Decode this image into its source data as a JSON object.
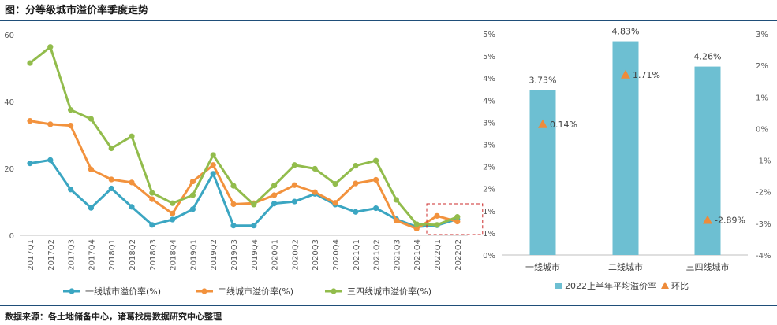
{
  "page": {
    "title": "图：分等级城市溢价率季度走势",
    "source": "数据来源：各土地储备中心，诸葛找房数据研究中心整理"
  },
  "colors": {
    "tier1": "#3ba6c2",
    "tier2": "#f2923d",
    "tier3": "#92bc4c",
    "bar": "#6dbfd2",
    "triangle": "#ee8b3a",
    "highlight_box": "#cc2b2b"
  },
  "chart_data": [
    {
      "type": "line",
      "x_categories": [
        "2017Q1",
        "2017Q2",
        "2017Q3",
        "2017Q4",
        "2018Q1",
        "2018Q2",
        "2018Q3",
        "2018Q4",
        "2019Q1",
        "2019Q2",
        "2019Q3",
        "2019Q4",
        "2020Q1",
        "2020Q2",
        "2020Q3",
        "2020Q4",
        "2021Q1",
        "2021Q2",
        "2021Q3",
        "2021Q4",
        "2022Q1",
        "2022Q2"
      ],
      "y_ticks": [
        "0",
        "20",
        "40",
        "60"
      ],
      "ylim": [
        0,
        60
      ],
      "grid": false,
      "legend_position": "bottom",
      "highlight": {
        "from": "2022Q1",
        "to": "2022Q2"
      },
      "series": [
        {
          "name": "一线城市溢价率(%)",
          "color_key": "tier1",
          "values": [
            21.5,
            22.5,
            13.7,
            8.2,
            14.0,
            8.5,
            3.1,
            4.7,
            7.8,
            18.4,
            2.9,
            2.9,
            9.5,
            10.1,
            12.4,
            9.2,
            7.0,
            8.1,
            4.8,
            2.5,
            3.0,
            4.8
          ]
        },
        {
          "name": "二线城市溢价率(%)",
          "color_key": "tier2",
          "values": [
            34.2,
            33.2,
            32.8,
            19.7,
            16.7,
            15.8,
            10.8,
            6.5,
            16.1,
            21.0,
            9.3,
            9.6,
            12.0,
            15.0,
            12.9,
            9.7,
            15.5,
            16.6,
            4.4,
            2.0,
            5.8,
            4.1
          ]
        },
        {
          "name": "三四线城市溢价率(%)",
          "color_key": "tier3",
          "values": [
            51.5,
            56.3,
            37.5,
            34.8,
            26.0,
            29.6,
            12.7,
            9.6,
            12.0,
            24.0,
            14.8,
            9.2,
            14.9,
            21.0,
            19.9,
            15.4,
            20.8,
            22.3,
            10.6,
            3.3,
            3.1,
            5.5
          ]
        }
      ]
    },
    {
      "type": "bar",
      "categories": [
        "一线城市",
        "二线城市",
        "三四线城市"
      ],
      "left_axis_ticks": [
        "0%",
        "1%",
        "1%",
        "2%",
        "2%",
        "3%",
        "3%",
        "4%",
        "4%",
        "5%",
        "5%"
      ],
      "right_axis_ticks": [
        "-4%",
        "-3%",
        "-2%",
        "-1%",
        "0%",
        "1%",
        "2%",
        "3%"
      ],
      "ylim_left": [
        0,
        5.0
      ],
      "ylim_right": [
        -4,
        3
      ],
      "grid": false,
      "legend_position": "bottom",
      "series": [
        {
          "name": "2022上半年平均溢价率",
          "kind": "bar",
          "axis": "left",
          "values": [
            3.73,
            4.83,
            4.26
          ],
          "labels": [
            "3.73%",
            "4.83%",
            "4.26%"
          ]
        },
        {
          "name": "环比",
          "kind": "marker",
          "axis": "right",
          "values": [
            0.14,
            1.71,
            -2.89
          ],
          "labels": [
            "0.14%",
            "1.71%",
            "-2.89%"
          ]
        }
      ]
    }
  ]
}
